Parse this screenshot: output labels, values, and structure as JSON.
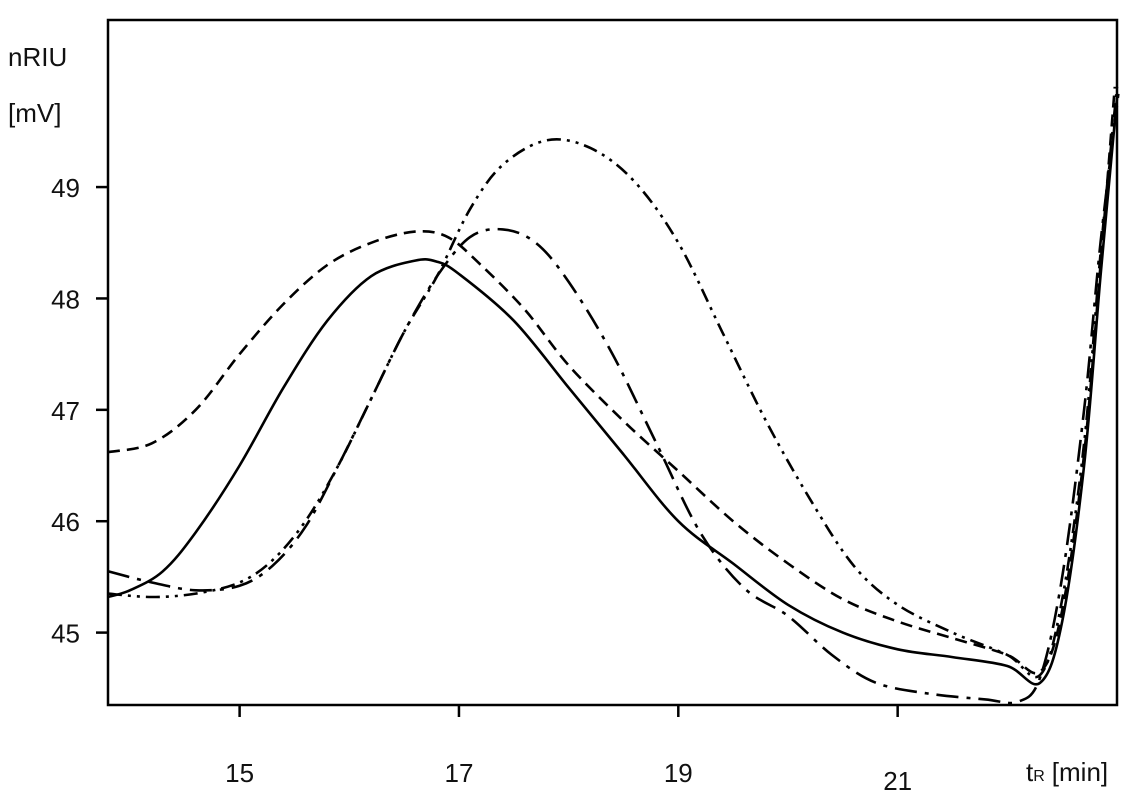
{
  "chart_data": {
    "type": "line",
    "title": "",
    "ylabel_line1": "nRIU",
    "ylabel_line2": "[mV]",
    "xlabel_main": "t",
    "xlabel_sub": "R",
    "xlabel_unit": "[min]",
    "xlim": [
      13.8,
      23.0
    ],
    "ylim": [
      44.35,
      50.5
    ],
    "xticks": [
      15,
      17,
      19,
      21
    ],
    "yticks": [
      45,
      46,
      47,
      48,
      49
    ],
    "grid": false,
    "series": [
      {
        "style": "solid",
        "points": [
          [
            13.8,
            45.32
          ],
          [
            14.0,
            45.38
          ],
          [
            14.3,
            45.55
          ],
          [
            14.6,
            45.9
          ],
          [
            15.0,
            46.5
          ],
          [
            15.4,
            47.2
          ],
          [
            15.8,
            47.8
          ],
          [
            16.2,
            48.2
          ],
          [
            16.6,
            48.34
          ],
          [
            16.8,
            48.33
          ],
          [
            17.0,
            48.22
          ],
          [
            17.5,
            47.8
          ],
          [
            18.0,
            47.2
          ],
          [
            18.5,
            46.6
          ],
          [
            19.0,
            46.0
          ],
          [
            19.5,
            45.62
          ],
          [
            20.0,
            45.25
          ],
          [
            20.5,
            45.0
          ],
          [
            21.0,
            44.85
          ],
          [
            21.5,
            44.78
          ],
          [
            22.0,
            44.7
          ],
          [
            22.3,
            44.55
          ],
          [
            22.5,
            45.1
          ],
          [
            22.7,
            46.5
          ],
          [
            22.85,
            48.2
          ],
          [
            23.0,
            49.8
          ]
        ]
      },
      {
        "style": "dashed",
        "points": [
          [
            13.8,
            46.62
          ],
          [
            14.2,
            46.7
          ],
          [
            14.6,
            47.0
          ],
          [
            15.0,
            47.5
          ],
          [
            15.4,
            47.95
          ],
          [
            15.8,
            48.3
          ],
          [
            16.2,
            48.5
          ],
          [
            16.6,
            48.6
          ],
          [
            16.9,
            48.55
          ],
          [
            17.2,
            48.3
          ],
          [
            17.6,
            47.9
          ],
          [
            18.0,
            47.4
          ],
          [
            18.5,
            46.9
          ],
          [
            19.0,
            46.45
          ],
          [
            19.5,
            46.0
          ],
          [
            20.0,
            45.62
          ],
          [
            20.5,
            45.3
          ],
          [
            21.0,
            45.1
          ],
          [
            21.5,
            44.95
          ],
          [
            22.0,
            44.8
          ],
          [
            22.3,
            44.65
          ],
          [
            22.5,
            45.2
          ],
          [
            22.7,
            46.6
          ],
          [
            22.85,
            48.3
          ],
          [
            22.98,
            49.9
          ]
        ]
      },
      {
        "style": "dash-dot",
        "points": [
          [
            13.8,
            45.55
          ],
          [
            14.2,
            45.45
          ],
          [
            14.6,
            45.38
          ],
          [
            15.0,
            45.42
          ],
          [
            15.3,
            45.6
          ],
          [
            15.6,
            45.95
          ],
          [
            15.9,
            46.5
          ],
          [
            16.2,
            47.1
          ],
          [
            16.5,
            47.7
          ],
          [
            16.8,
            48.2
          ],
          [
            17.1,
            48.55
          ],
          [
            17.4,
            48.62
          ],
          [
            17.7,
            48.5
          ],
          [
            18.0,
            48.15
          ],
          [
            18.4,
            47.5
          ],
          [
            18.8,
            46.7
          ],
          [
            19.2,
            45.9
          ],
          [
            19.6,
            45.4
          ],
          [
            20.0,
            45.15
          ],
          [
            20.4,
            44.8
          ],
          [
            20.8,
            44.55
          ],
          [
            21.3,
            44.45
          ],
          [
            21.8,
            44.4
          ],
          [
            22.1,
            44.38
          ],
          [
            22.3,
            44.6
          ],
          [
            22.5,
            45.5
          ],
          [
            22.7,
            47.0
          ],
          [
            22.85,
            48.5
          ],
          [
            23.02,
            49.9
          ]
        ]
      },
      {
        "style": "dash-dot-dot",
        "points": [
          [
            13.8,
            45.35
          ],
          [
            14.2,
            45.32
          ],
          [
            14.6,
            45.35
          ],
          [
            15.0,
            45.45
          ],
          [
            15.3,
            45.65
          ],
          [
            15.6,
            46.0
          ],
          [
            15.9,
            46.5
          ],
          [
            16.2,
            47.1
          ],
          [
            16.5,
            47.7
          ],
          [
            16.8,
            48.2
          ],
          [
            17.1,
            48.8
          ],
          [
            17.4,
            49.2
          ],
          [
            17.8,
            49.42
          ],
          [
            18.2,
            49.35
          ],
          [
            18.6,
            49.05
          ],
          [
            19.0,
            48.5
          ],
          [
            19.4,
            47.7
          ],
          [
            19.8,
            46.9
          ],
          [
            20.2,
            46.2
          ],
          [
            20.6,
            45.6
          ],
          [
            21.0,
            45.25
          ],
          [
            21.5,
            45.0
          ],
          [
            22.0,
            44.8
          ],
          [
            22.3,
            44.62
          ],
          [
            22.5,
            45.3
          ],
          [
            22.7,
            46.7
          ],
          [
            22.85,
            48.4
          ],
          [
            23.0,
            49.9
          ]
        ]
      }
    ]
  }
}
